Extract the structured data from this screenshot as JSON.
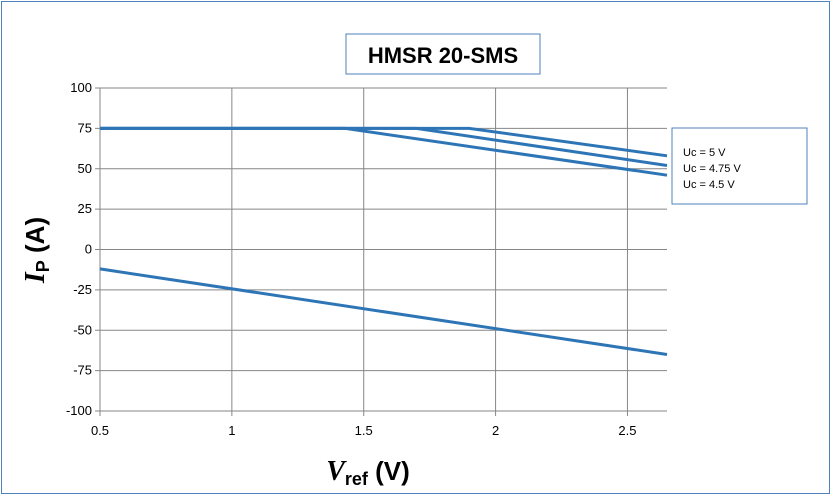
{
  "chart_data": {
    "type": "line",
    "title": "HMSR 20-SMS",
    "xlabel": {
      "main": "V",
      "sub": "ref",
      "unit": " (V)"
    },
    "ylabel": {
      "main": "I",
      "sub": "P",
      "unit": " (A)"
    },
    "xlim": [
      0.5,
      2.65
    ],
    "ylim": [
      -100,
      100
    ],
    "x_ticks": [
      "0.5",
      "1",
      "1.5",
      "2",
      "2.5"
    ],
    "y_ticks": [
      "100",
      "75",
      "50",
      "25",
      "0",
      "-25",
      "-50",
      "-75",
      "-100"
    ],
    "grid": true,
    "legend_position": "right",
    "legend": [
      "Uc = 5 V",
      "Uc = 4.75 V",
      "Uc = 4.5 V"
    ],
    "series_color": "#2e75b6",
    "series": [
      {
        "name": "Uc = 5 V",
        "points": [
          [
            0.5,
            75
          ],
          [
            1.9,
            75
          ],
          [
            2.65,
            58
          ]
        ]
      },
      {
        "name": "Uc = 4.75 V",
        "points": [
          [
            0.5,
            75
          ],
          [
            1.7,
            75
          ],
          [
            2.65,
            52
          ]
        ]
      },
      {
        "name": "Uc = 4.5 V",
        "points": [
          [
            0.5,
            75
          ],
          [
            1.43,
            75
          ],
          [
            2.65,
            46
          ]
        ]
      },
      {
        "name": "",
        "points": [
          [
            0.5,
            -12
          ],
          [
            2.65,
            -65
          ]
        ]
      }
    ]
  }
}
